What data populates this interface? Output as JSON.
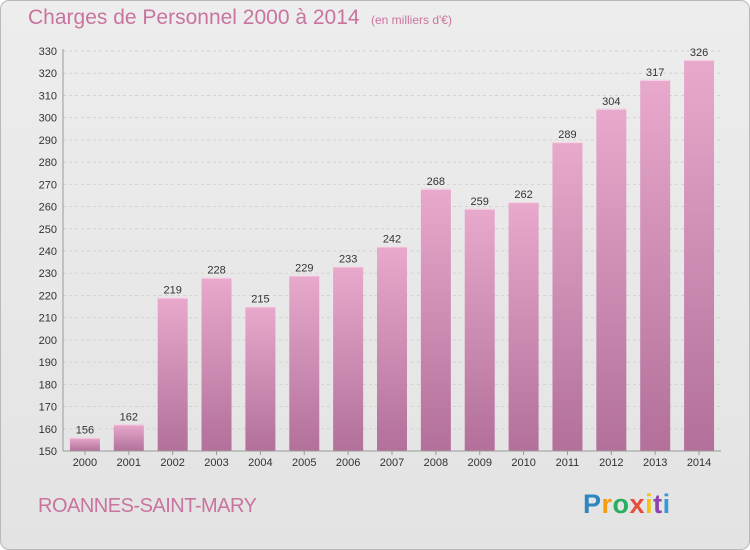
{
  "header": {
    "title": "Charges de Personnel 2000 à 2014",
    "subtitle": "(en milliers d'€)"
  },
  "footer": {
    "commune": "ROANNES-SAINT-MARY",
    "logo_letters": [
      "P",
      "r",
      "o",
      "x",
      "i",
      "t",
      "i"
    ],
    "logo_colors": [
      "#2e86c1",
      "#f39c12",
      "#27ae60",
      "#e74c3c",
      "#f1c40f",
      "#8e44ad",
      "#3498db"
    ]
  },
  "colors": {
    "bar_top": "#e8a9cc",
    "bar_bottom": "#b2709a",
    "accent": "#c9749f"
  },
  "chart_data": {
    "type": "bar",
    "title": "Charges de Personnel 2000 à 2014",
    "unit": "(en milliers d'€)",
    "categories": [
      "2000",
      "2001",
      "2002",
      "2003",
      "2004",
      "2005",
      "2006",
      "2007",
      "2008",
      "2009",
      "2010",
      "2011",
      "2012",
      "2013",
      "2014"
    ],
    "values": [
      156,
      162,
      219,
      228,
      215,
      229,
      233,
      242,
      268,
      259,
      262,
      289,
      304,
      317,
      326
    ],
    "ylim": [
      150,
      330
    ],
    "yticks": [
      150,
      160,
      170,
      180,
      190,
      200,
      210,
      220,
      230,
      240,
      250,
      260,
      270,
      280,
      290,
      300,
      310,
      320,
      330
    ],
    "grid": true,
    "data_labels": true
  }
}
